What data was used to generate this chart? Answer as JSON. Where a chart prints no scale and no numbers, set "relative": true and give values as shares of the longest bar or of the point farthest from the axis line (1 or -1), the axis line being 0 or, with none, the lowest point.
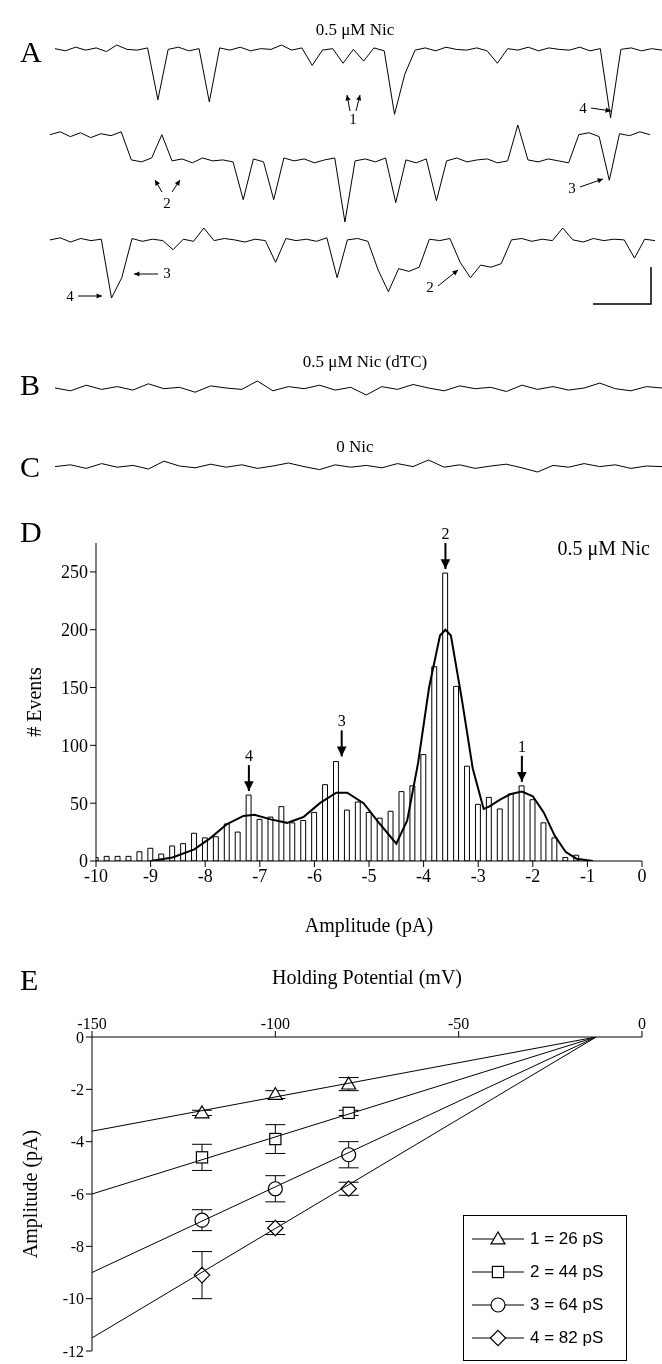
{
  "chart_data": [
    {
      "type": "line",
      "relative": true,
      "title": "0.5 μM Nic",
      "color": "#000000",
      "annotations": [
        "A",
        "1",
        "4"
      ],
      "categories": [
        null,
        null,
        null,
        null,
        null,
        null,
        null,
        null,
        null,
        null,
        null,
        null,
        null,
        null,
        null,
        null,
        null,
        null,
        null,
        null,
        null,
        null,
        null,
        null,
        null,
        null,
        null,
        null,
        null,
        null,
        null,
        null,
        null,
        null,
        null,
        null,
        null,
        null,
        null,
        null,
        null,
        null,
        null,
        null,
        null,
        null,
        null,
        null,
        null,
        null,
        null,
        null,
        null,
        null,
        null,
        null,
        null,
        null,
        null,
        null
      ],
      "values": [
        0.95,
        0.92,
        0.97,
        0.93,
        0.96,
        0.91,
        1,
        0.94,
        0.93,
        0.96,
        0.25,
        0.94,
        0.97,
        0.92,
        0.95,
        0.22,
        0.96,
        0.93,
        0.97,
        0.92,
        0.95,
        0.94,
        1,
        0.93,
        0.96,
        0.72,
        0.93,
        0.95,
        0.75,
        0.94,
        0.78,
        0.96,
        0.92,
        0.05,
        0.6,
        0.93,
        0.96,
        0.92,
        0.97,
        0.94,
        0.93,
        0.96,
        0.92,
        0.75,
        0.95,
        0.93,
        0.97,
        0.92,
        0.96,
        0.94,
        0.93,
        0.97,
        0.92,
        0.95,
        0,
        0.94,
        0.96,
        0.92,
        0.95,
        0.93
      ]
    },
    {
      "type": "line",
      "relative": true,
      "color": "#000000",
      "annotations": [
        "2",
        "3"
      ],
      "categories": [
        null,
        null,
        null,
        null,
        null,
        null,
        null,
        null,
        null,
        null,
        null,
        null,
        null,
        null,
        null,
        null,
        null,
        null,
        null,
        null,
        null,
        null,
        null,
        null,
        null,
        null,
        null,
        null,
        null,
        null,
        null,
        null,
        null,
        null,
        null,
        null,
        null,
        null,
        null,
        null,
        null,
        null,
        null,
        null,
        null,
        null,
        null,
        null,
        null,
        null,
        null,
        null,
        null,
        null,
        null,
        null,
        null,
        null,
        null,
        null
      ],
      "values": [
        0.9,
        0.93,
        0.88,
        0.92,
        0.87,
        0.91,
        0.89,
        0.93,
        0.64,
        0.62,
        0.66,
        0.9,
        0.63,
        0.65,
        0.61,
        0.66,
        0.63,
        0.64,
        0.62,
        0.23,
        0.65,
        0.62,
        0.23,
        0.66,
        0.63,
        0.65,
        0.61,
        0.64,
        0.66,
        0,
        0.63,
        0.65,
        0.62,
        0.66,
        0.2,
        0.64,
        0.61,
        0.65,
        0.22,
        0.63,
        0.66,
        0.62,
        0.64,
        0.65,
        0.61,
        0.63,
        1,
        0.64,
        0.62,
        0.65,
        0.63,
        0.61,
        0.9,
        0.92,
        0.88,
        0.43,
        0.91,
        0.89,
        0.93,
        0.9
      ]
    },
    {
      "type": "line",
      "relative": true,
      "color": "#000000",
      "annotations": [
        "4",
        "3",
        "2"
      ],
      "categories": [
        null,
        null,
        null,
        null,
        null,
        null,
        null,
        null,
        null,
        null,
        null,
        null,
        null,
        null,
        null,
        null,
        null,
        null,
        null,
        null,
        null,
        null,
        null,
        null,
        null,
        null,
        null,
        null,
        null,
        null,
        null,
        null,
        null,
        null,
        null,
        null,
        null,
        null,
        null,
        null,
        null,
        null,
        null,
        null,
        null,
        null,
        null,
        null,
        null,
        null,
        null,
        null,
        null,
        null,
        null,
        null,
        null,
        null,
        null,
        null
      ],
      "values": [
        0.83,
        0.86,
        0.8,
        0.85,
        0.82,
        0.84,
        0,
        0.29,
        0.85,
        0.81,
        0.84,
        0.82,
        0.69,
        0.84,
        0.81,
        1,
        0.82,
        0.85,
        0.83,
        0.8,
        0.84,
        0.82,
        0.51,
        0.85,
        0.82,
        0.84,
        0.81,
        0.86,
        0.29,
        0.83,
        0.85,
        0.81,
        0.4,
        0.09,
        0.42,
        0.38,
        0.44,
        0.84,
        0.82,
        0.85,
        0.51,
        0.29,
        0.47,
        0.44,
        0.49,
        0.83,
        0.85,
        0.81,
        0.84,
        0.82,
        1,
        0.83,
        0.8,
        0.85,
        0.82,
        0.84,
        0.83,
        0.57,
        0.84,
        0.82
      ]
    },
    {
      "type": "line",
      "relative": true,
      "title": "0.5 μM Nic (dTC)",
      "color": "#000000",
      "annotations": [
        "B"
      ],
      "categories": [
        null,
        null,
        null,
        null,
        null,
        null,
        null,
        null,
        null,
        null,
        null,
        null,
        null,
        null,
        null,
        null,
        null,
        null,
        null,
        null,
        null,
        null,
        null,
        null,
        null,
        null,
        null,
        null,
        null,
        null,
        null,
        null,
        null,
        null,
        null,
        null,
        null,
        null,
        null,
        null
      ],
      "values": [
        0.5,
        0.3,
        0.7,
        0.4,
        0.6,
        0.35,
        0.8,
        0.45,
        0.55,
        0.2,
        0.65,
        0.5,
        0.4,
        1,
        0.3,
        0.6,
        0.45,
        0.7,
        0.35,
        0.55,
        0,
        0.6,
        0.4,
        0.75,
        0.5,
        0.3,
        0.65,
        0.45,
        0.55,
        0.25,
        0.7,
        0.4,
        0.6,
        0.35,
        0.5,
        0.85,
        0.45,
        0.3,
        0.6,
        0.5
      ]
    },
    {
      "type": "line",
      "relative": true,
      "title": "0 Nic",
      "color": "#000000",
      "annotations": [
        "C"
      ],
      "categories": [
        null,
        null,
        null,
        null,
        null,
        null,
        null,
        null,
        null,
        null,
        null,
        null,
        null,
        null,
        null,
        null,
        null,
        null,
        null,
        null,
        null,
        null,
        null,
        null,
        null,
        null,
        null,
        null,
        null,
        null,
        null,
        null,
        null,
        null,
        null,
        null,
        null,
        null,
        null,
        null
      ],
      "values": [
        0.45,
        0.6,
        0.3,
        0.7,
        0.4,
        0.55,
        0.25,
        0.9,
        0.5,
        0.35,
        0.65,
        0.4,
        0.6,
        0.3,
        0.5,
        0.75,
        0.45,
        0.2,
        0.6,
        0.4,
        0.55,
        0.35,
        0.7,
        0.45,
        1,
        0.4,
        0.6,
        0.3,
        0.5,
        0.65,
        0.35,
        0,
        0.55,
        0.4,
        0.7,
        0.45,
        0.6,
        0.3,
        0.5,
        0.45
      ]
    },
    {
      "type": "histogram",
      "title": "0.5 μM Nic",
      "xlabel": "Amplitude (pA)",
      "ylabel": "# Events",
      "xlim": [
        -10,
        0
      ],
      "xticks": [
        -10,
        -9,
        -8,
        -7,
        -6,
        -5,
        -4,
        -3,
        -2,
        -1,
        0
      ],
      "ylim": [
        0,
        275
      ],
      "yticks": [
        0,
        50,
        100,
        150,
        200,
        250
      ],
      "annotations": [
        "D",
        {
          "text": "4",
          "x": -7.2,
          "y": 57
        },
        {
          "text": "3",
          "x": -5.5,
          "y": 87
        },
        {
          "text": "2",
          "x": -3.6,
          "y": 249
        },
        {
          "text": "1",
          "x": -2.2,
          "y": 65
        }
      ],
      "series": [
        {
          "type": "histogram",
          "color": "#ffffff",
          "bins": [
            -10.1,
            -9.9,
            -9.7,
            -9.5,
            -9.3,
            -9.1,
            -8.9,
            -8.7,
            -8.5,
            -8.3,
            -8.1,
            -7.9,
            -7.7,
            -7.5,
            -7.3,
            -7.1,
            -6.9,
            -6.7,
            -6.5,
            -6.3,
            -6.1,
            -5.9,
            -5.7,
            -5.5,
            -5.3,
            -5.1,
            -4.9,
            -4.7,
            -4.5,
            -4.3,
            -4.1,
            -3.9,
            -3.7,
            -3.5,
            -3.3,
            -3.1,
            -2.9,
            -2.7,
            -2.5,
            -2.3,
            -2.1,
            -1.9,
            -1.7,
            -1.5,
            -1.3,
            -1.1
          ],
          "values": [
            3,
            4,
            4,
            4,
            8,
            11,
            6,
            13,
            15,
            24,
            20,
            21,
            32,
            25,
            57,
            36,
            38,
            47,
            33,
            35,
            42,
            66,
            86,
            44,
            51,
            42,
            37,
            43,
            60,
            65,
            92,
            168,
            249,
            151,
            82,
            49,
            55,
            45,
            58,
            65,
            53,
            33,
            20,
            3,
            5
          ]
        },
        {
          "type": "line",
          "color": "#000000",
          "x": [
            -9,
            -8.6,
            -8.2,
            -7.9,
            -7.6,
            -7.3,
            -7.1,
            -6.8,
            -6.5,
            -6.2,
            -5.9,
            -5.6,
            -5.4,
            -5.1,
            -4.8,
            -4.5,
            -4.3,
            -4.1,
            -3.9,
            -3.7,
            -3.6,
            -3.5,
            -3.3,
            -3.1,
            -2.9,
            -2.8,
            -2.6,
            -2.4,
            -2.2,
            -2,
            -1.8,
            -1.6,
            -1.4,
            -1.2,
            -0.9
          ],
          "values": [
            0,
            3,
            10,
            20,
            32,
            39,
            40,
            36,
            33,
            38,
            50,
            59,
            59,
            50,
            32,
            15,
            35,
            85,
            150,
            195,
            200,
            195,
            140,
            80,
            45,
            47,
            53,
            58,
            60,
            56,
            42,
            22,
            8,
            2,
            0
          ]
        }
      ]
    },
    {
      "type": "scatter",
      "xlabel": "Holding Potential (mV)",
      "ylabel": "Amplitude (pA)",
      "xlim": [
        -150,
        0
      ],
      "xticks": [
        -150,
        -100,
        -50,
        0
      ],
      "ylim": [
        -12,
        0
      ],
      "yticks": [
        0,
        -2,
        -4,
        -6,
        -8,
        -10,
        -12
      ],
      "legend": "bottom right",
      "annotations": [
        "E"
      ],
      "series": [
        {
          "name": "1 = 26 pS",
          "color": "#000000",
          "marker": "triangle",
          "x": [
            -120,
            -100,
            -80
          ],
          "values": [
            -2.9,
            -2.2,
            -1.8
          ],
          "errors": [
            0.1,
            0.15,
            0.25
          ]
        },
        {
          "name": "2 = 44 pS",
          "color": "#000000",
          "marker": "square",
          "x": [
            -120,
            -100,
            -80
          ],
          "values": [
            -4.6,
            -3.9,
            -2.9
          ],
          "errors": [
            0.5,
            0.55,
            0.1
          ]
        },
        {
          "name": "3 = 64 pS",
          "color": "#000000",
          "marker": "circle",
          "x": [
            -120,
            -100,
            -80
          ],
          "values": [
            -7,
            -5.8,
            -4.5
          ],
          "errors": [
            0.4,
            0.5,
            0.5
          ]
        },
        {
          "name": "4 = 82 pS",
          "color": "#000000",
          "marker": "diamond",
          "x": [
            -120,
            -100,
            -80
          ],
          "values": [
            -9.1,
            -7.3,
            -5.8
          ],
          "errors": [
            0.9,
            0.25,
            0.25
          ]
        },
        {
          "type": "line",
          "color": "#000000",
          "x": [
            -150,
            -12.5
          ],
          "values": [
            -3.6,
            0
          ]
        },
        {
          "type": "line",
          "color": "#000000",
          "x": [
            -150,
            -12.5
          ],
          "values": [
            -6,
            0
          ]
        },
        {
          "type": "line",
          "color": "#000000",
          "x": [
            -150,
            -12.5
          ],
          "values": [
            -9,
            0
          ]
        },
        {
          "type": "line",
          "color": "#000000",
          "x": [
            -150,
            -12.5
          ],
          "values": [
            -11.5,
            0
          ]
        }
      ]
    }
  ]
}
